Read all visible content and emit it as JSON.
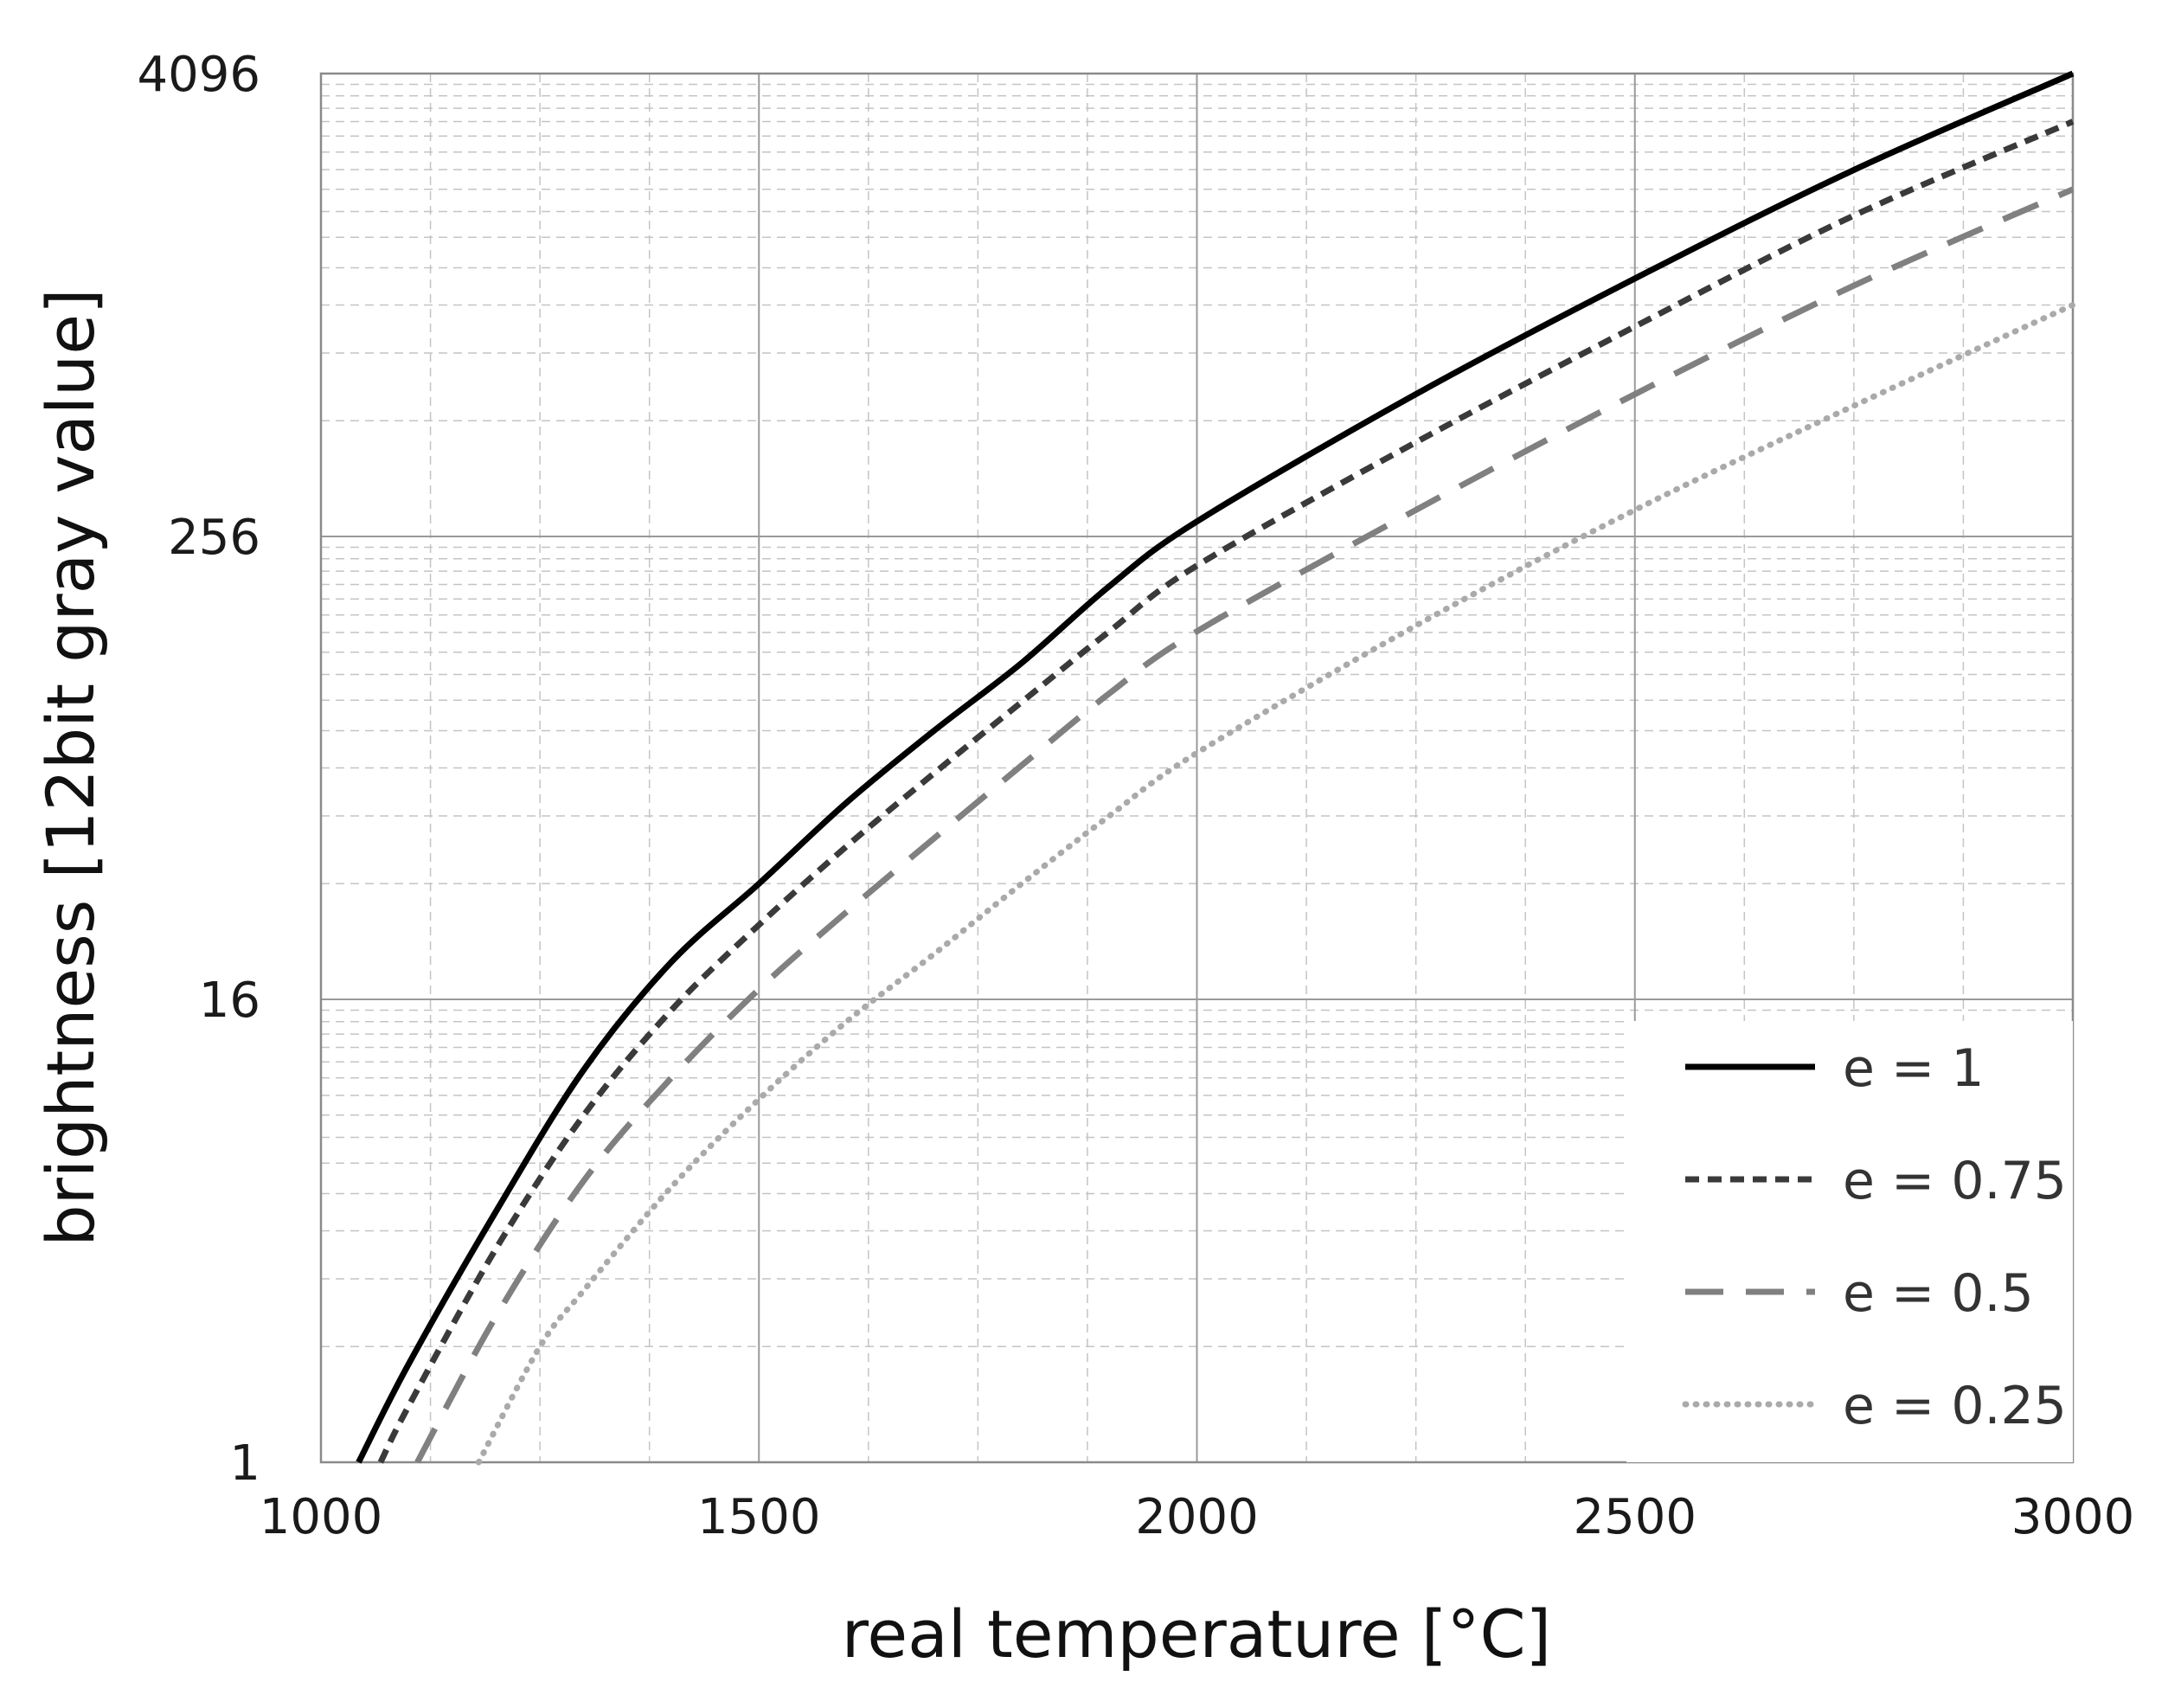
{
  "chart_data": {
    "type": "line",
    "title": "",
    "xlabel": "real temperature [°C]",
    "ylabel": "brightness [12bit gray value]",
    "xlim": [
      1000,
      3000
    ],
    "ylim": [
      1,
      4096
    ],
    "yscale": "log2",
    "x_ticks": [
      1000,
      1500,
      2000,
      2500,
      3000
    ],
    "x_tick_labels": [
      "1000",
      "1500",
      "2000",
      "2500",
      "3000"
    ],
    "y_ticks": [
      1,
      16,
      256,
      4096
    ],
    "y_tick_labels": [
      "1",
      "16",
      "256",
      "4096"
    ],
    "grid": true,
    "legend_position": "bottom-right",
    "series": [
      {
        "name": "e = 1",
        "style": "solid",
        "color": "#000000",
        "x": [
          1043,
          1100,
          1200,
          1300,
          1400,
          1500,
          1600,
          1700,
          1800,
          1900,
          2000,
          2250,
          2500,
          2750,
          3000
        ],
        "y": [
          1,
          1.8,
          4.5,
          10.5,
          20,
          32,
          52,
          80,
          120,
          190,
          280,
          600,
          1200,
          2300,
          4096
        ]
      },
      {
        "name": "e = 0.75",
        "style": "dashed",
        "color": "#3a3a3a",
        "x": [
          1068,
          1100,
          1200,
          1300,
          1400,
          1500,
          1600,
          1700,
          1800,
          1900,
          2000,
          2250,
          2500,
          2750,
          3000
        ],
        "y": [
          1,
          1.4,
          3.6,
          8,
          15,
          25,
          40,
          62,
          95,
          145,
          215,
          450,
          900,
          1750,
          3072
        ]
      },
      {
        "name": "e = 0.5",
        "style": "long-dashed",
        "color": "#808080",
        "x": [
          1110,
          1200,
          1300,
          1400,
          1500,
          1600,
          1700,
          1800,
          1900,
          2000,
          2250,
          2500,
          2750,
          3000
        ],
        "y": [
          1,
          2.4,
          5.4,
          10,
          17,
          27,
          42,
          65,
          100,
          145,
          300,
          600,
          1150,
          2048
        ]
      },
      {
        "name": "e = 0.25",
        "style": "dotted",
        "color": "#aaaaaa",
        "x": [
          1180,
          1250,
          1300,
          1400,
          1500,
          1600,
          1700,
          1800,
          1900,
          2000,
          2250,
          2500,
          2750,
          3000
        ],
        "y": [
          1,
          2,
          2.8,
          5.2,
          8.8,
          14,
          21,
          32,
          48,
          70,
          150,
          300,
          560,
          1024
        ]
      }
    ]
  }
}
